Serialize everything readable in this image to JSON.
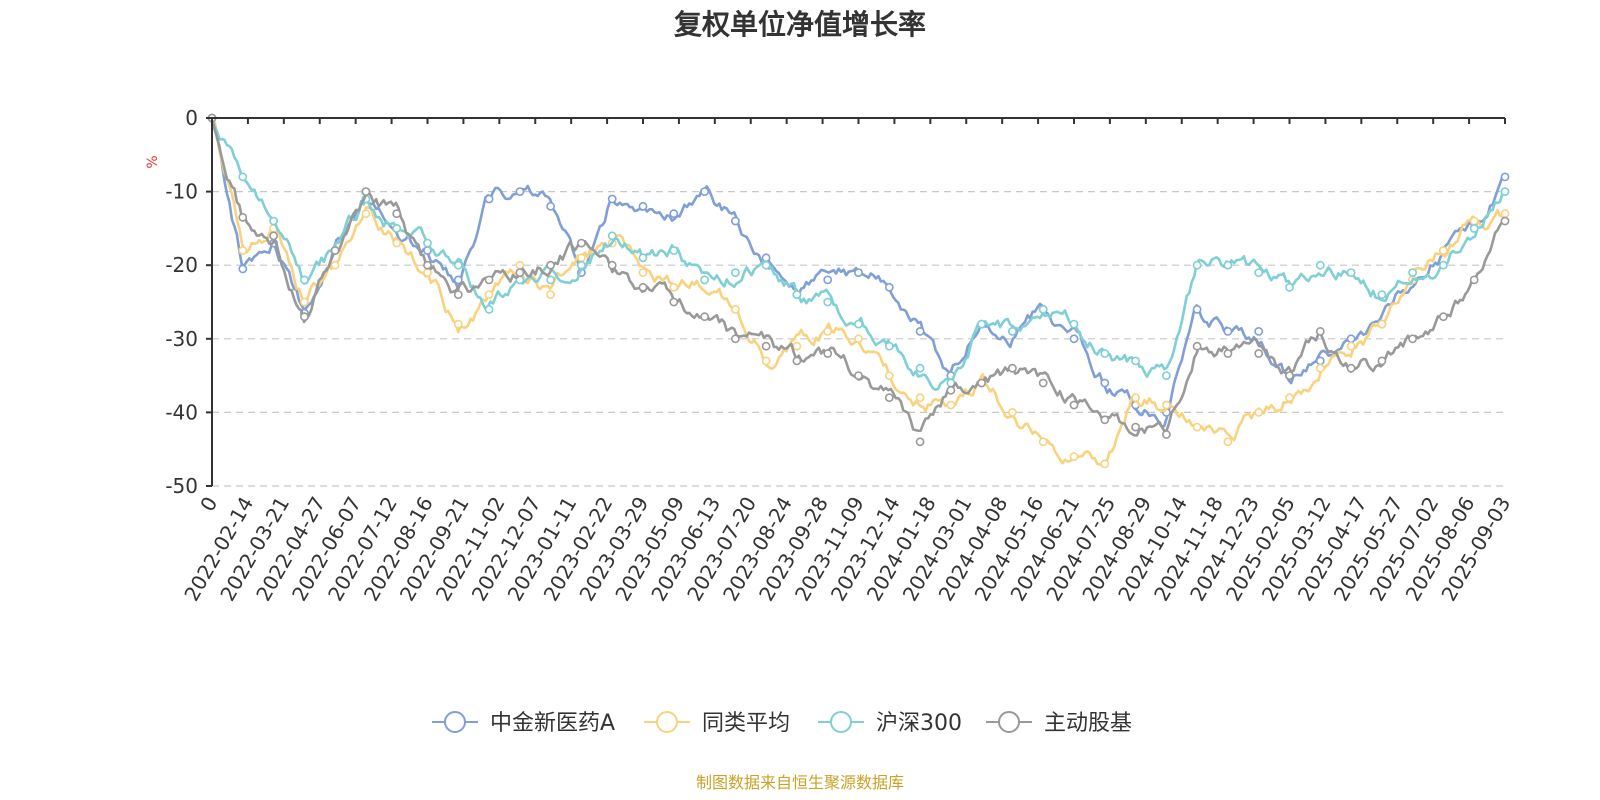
{
  "chart_data": {
    "type": "line",
    "title": "复权单位净值增长率",
    "ylabel": "%",
    "ylim": [
      -50,
      0
    ],
    "yticks": [
      0,
      -10,
      -20,
      -30,
      -40,
      -50
    ],
    "x_ticks": [
      "0",
      "2022-02-14",
      "2022-03-21",
      "2022-04-27",
      "2022-06-07",
      "2022-07-12",
      "2022-08-16",
      "2022-09-21",
      "2022-11-02",
      "2022-12-07",
      "2023-01-11",
      "2023-02-22",
      "2023-03-29",
      "2023-05-09",
      "2023-06-13",
      "2023-07-20",
      "2023-08-24",
      "2023-09-28",
      "2023-11-09",
      "2023-12-14",
      "2024-01-18",
      "2024-03-01",
      "2024-04-08",
      "2024-05-16",
      "2024-06-21",
      "2024-07-25",
      "2024-08-29",
      "2024-10-14",
      "2024-11-18",
      "2024-12-23",
      "2025-02-05",
      "2025-03-12",
      "2025-04-17",
      "2025-05-27",
      "2025-07-02",
      "2025-08-06",
      "2025-09-03"
    ],
    "grid": true,
    "legend_position": "bottom",
    "series": [
      {
        "name": "中金新医药A",
        "color": "#7f9fd6",
        "values": [
          0,
          -20.5,
          -17,
          -26.5,
          -18,
          -10,
          -15,
          -18,
          -22,
          -11,
          -10,
          -12,
          -21,
          -11,
          -12,
          -13,
          -10,
          -14,
          -19,
          -24,
          -22,
          -21,
          -23,
          -29,
          -35,
          -28,
          -29,
          -26,
          -30,
          -36,
          -39,
          -40,
          -26,
          -29,
          -29,
          -35,
          -33,
          -30,
          -28,
          -22,
          -18,
          -15,
          -8
        ]
      },
      {
        "name": "同类平均",
        "color": "#f9d27f",
        "values": [
          0,
          -18,
          -15,
          -25,
          -20,
          -13,
          -17,
          -21,
          -28,
          -24,
          -20,
          -24,
          -19,
          -17,
          -21,
          -23,
          -22,
          -26,
          -33,
          -31,
          -29,
          -30,
          -35,
          -38,
          -39,
          -36,
          -40,
          -44,
          -46,
          -47,
          -38,
          -39,
          -42,
          -44,
          -40,
          -38,
          -34,
          -31,
          -28,
          -22,
          -18,
          -14,
          -13
        ]
      },
      {
        "name": "沪深300",
        "color": "#7fcfd4",
        "values": [
          0,
          -8,
          -14,
          -22,
          -18,
          -11,
          -15,
          -17,
          -20,
          -26,
          -22,
          -22,
          -20,
          -16,
          -19,
          -18,
          -22,
          -21,
          -20,
          -24,
          -25,
          -28,
          -31,
          -34,
          -36,
          -28,
          -29,
          -26,
          -28,
          -32,
          -33,
          -35,
          -20,
          -20,
          -21,
          -23,
          -20,
          -21,
          -24,
          -21,
          -20,
          -15,
          -10
        ]
      },
      {
        "name": "主动股基",
        "color": "#999999",
        "values": [
          0,
          -13.5,
          -16,
          -27,
          -18,
          -10,
          -13,
          -20,
          -24,
          -22,
          -21,
          -20,
          -17,
          -20,
          -23,
          -25,
          -27,
          -30,
          -31,
          -33,
          -32,
          -35,
          -38,
          -44,
          -37,
          -36,
          -34,
          -36,
          -39,
          -41,
          -42,
          -43,
          -31,
          -32,
          -32,
          -35,
          -29,
          -34,
          -33,
          -30,
          -27,
          -22,
          -14
        ]
      }
    ]
  },
  "legend_marker": "circle",
  "source": "制图数据来自恒生聚源数据库"
}
